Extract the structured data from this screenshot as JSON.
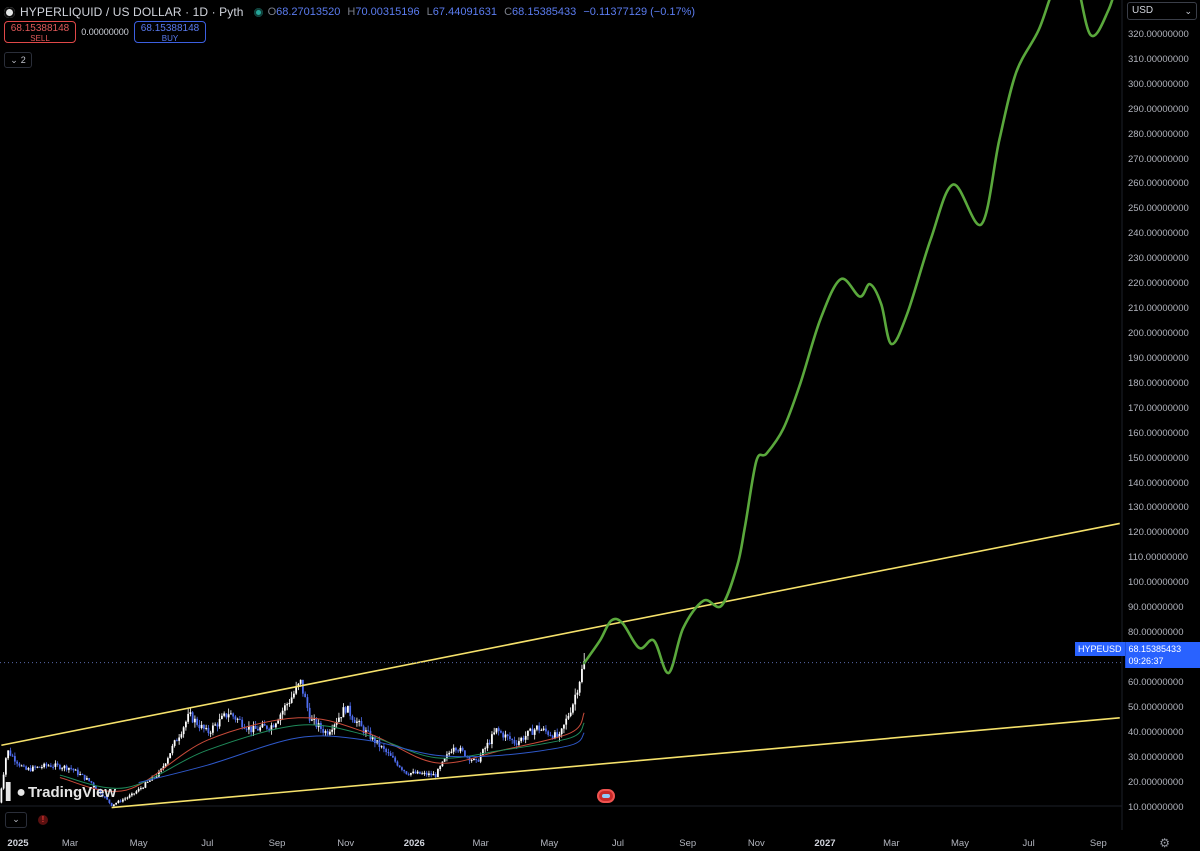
{
  "header": {
    "symbol_title": "HYPERLIQUID / US DOLLAR · 1D · Pyth",
    "open_label": "O",
    "open": "68.27013520",
    "high_label": "H",
    "high": "70.00315196",
    "low_label": "L",
    "low": "67.44091631",
    "close_label": "C",
    "close": "68.15385433",
    "change": "−0.11377129 (−0.17%)"
  },
  "trade": {
    "sell_price": "68.15388148",
    "sell_label": "SELL",
    "spread": "0.00000000",
    "buy_price": "68.15388148",
    "buy_label": "BUY"
  },
  "indicators_toggle": {
    "count": "2"
  },
  "currency": "USD",
  "last_price_tag": {
    "symbol": "HYPEUSD",
    "price": "68.15385433",
    "countdown": "09:26:37"
  },
  "logo_text": "TradingView",
  "colors": {
    "trendline": "#f5e16b",
    "projection": "#5aa83c",
    "accent": "#2962ff"
  },
  "price_axis_labels": [
    "320.00000000",
    "310.00000000",
    "300.00000000",
    "290.00000000",
    "280.00000000",
    "270.00000000",
    "260.00000000",
    "250.00000000",
    "240.00000000",
    "230.00000000",
    "220.00000000",
    "210.00000000",
    "200.00000000",
    "190.00000000",
    "180.00000000",
    "170.00000000",
    "160.00000000",
    "150.00000000",
    "140.00000000",
    "130.00000000",
    "120.00000000",
    "110.00000000",
    "100.00000000",
    "90.00000000",
    "80.00000000",
    "70.00000000",
    "60.00000000",
    "50.00000000",
    "40.00000000",
    "30.00000000",
    "20.00000000",
    "10.00000000"
  ],
  "time_axis_labels": [
    {
      "text": "2025",
      "bold": true
    },
    {
      "text": "Mar",
      "bold": false
    },
    {
      "text": "May",
      "bold": false
    },
    {
      "text": "Jul",
      "bold": false
    },
    {
      "text": "Sep",
      "bold": false
    },
    {
      "text": "Nov",
      "bold": false
    },
    {
      "text": "2026",
      "bold": true
    },
    {
      "text": "Mar",
      "bold": false
    },
    {
      "text": "May",
      "bold": false
    },
    {
      "text": "Jul",
      "bold": false
    },
    {
      "text": "Sep",
      "bold": false
    },
    {
      "text": "Nov",
      "bold": false
    },
    {
      "text": "2027",
      "bold": true
    },
    {
      "text": "Mar",
      "bold": false
    },
    {
      "text": "May",
      "bold": false
    },
    {
      "text": "Jul",
      "bold": false
    },
    {
      "text": "Sep",
      "bold": false
    }
  ],
  "chart_data": {
    "type": "line",
    "y_range": [
      5,
      330
    ],
    "x_range": [
      "2024-12-27",
      "2027-09-22"
    ],
    "current_price": 68.15,
    "trendlines": [
      {
        "name": "upper",
        "from": {
          "x": "2024-12-30",
          "y": 35
        },
        "to": {
          "x": "2027-09-20",
          "y": 124
        }
      },
      {
        "name": "lower",
        "from": {
          "x": "2025-04-07",
          "y": 10
        },
        "to": {
          "x": "2027-09-20",
          "y": 46
        }
      }
    ],
    "price_history": {
      "x": [
        "2024-12-28",
        "2025-01-04",
        "2025-01-20",
        "2025-02-10",
        "2025-03-01",
        "2025-03-20",
        "2025-04-07",
        "2025-04-25",
        "2025-05-20",
        "2025-06-01",
        "2025-06-15",
        "2025-07-01",
        "2025-07-20",
        "2025-08-10",
        "2025-08-28",
        "2025-09-15",
        "2025-09-22",
        "2025-10-01",
        "2025-10-15",
        "2025-11-01",
        "2025-11-15",
        "2025-12-05",
        "2025-12-25",
        "2026-01-20",
        "2026-02-05",
        "2026-02-25",
        "2026-03-15",
        "2026-04-01",
        "2026-04-20",
        "2026-05-10",
        "2026-05-22",
        "2026-06-01"
      ],
      "y": [
        12,
        33,
        25,
        27,
        26,
        20,
        11,
        15,
        24,
        35,
        47,
        40,
        48,
        41,
        43,
        55,
        60,
        45,
        40,
        50,
        42,
        33,
        24,
        23,
        35,
        28,
        41,
        36,
        42,
        38,
        52,
        68
      ]
    },
    "projection": {
      "x": [
        "2026-06-01",
        "2026-06-15",
        "2026-06-25",
        "2026-07-05",
        "2026-07-20",
        "2026-08-02",
        "2026-08-15",
        "2026-08-28",
        "2026-09-15",
        "2026-10-01",
        "2026-10-15",
        "2026-10-22",
        "2026-11-01",
        "2026-11-10",
        "2026-11-25",
        "2026-12-10",
        "2026-12-28",
        "2027-01-15",
        "2027-02-01",
        "2027-02-10",
        "2027-02-20",
        "2027-03-01",
        "2027-03-15",
        "2027-04-05",
        "2027-04-25",
        "2027-05-20",
        "2027-06-05",
        "2027-06-20",
        "2027-07-10",
        "2027-07-25",
        "2027-08-10",
        "2027-08-25",
        "2027-09-10",
        "2027-09-20"
      ],
      "y": [
        68,
        77,
        85,
        84,
        74,
        77,
        64,
        82,
        93,
        91,
        107,
        123,
        149,
        152,
        162,
        180,
        206,
        222,
        215,
        220,
        212,
        196,
        208,
        238,
        260,
        244,
        278,
        305,
        322,
        340,
        345,
        320,
        330,
        345
      ]
    },
    "moving_averages": [
      {
        "color": "#c94b3a",
        "x": [
          "2025-02-20",
          "2025-04-20",
          "2025-07-01",
          "2025-09-20",
          "2025-11-20",
          "2026-01-20",
          "2026-03-20",
          "2026-05-20",
          "2026-06-01"
        ],
        "y": [
          22,
          17,
          37,
          46,
          40,
          28,
          33,
          40,
          48
        ]
      },
      {
        "color": "#1f8a5a",
        "x": [
          "2025-02-20",
          "2025-04-20",
          "2025-07-01",
          "2025-09-20",
          "2025-11-20",
          "2026-01-20",
          "2026-03-20",
          "2026-05-20",
          "2026-06-01"
        ],
        "y": [
          23,
          18,
          33,
          43,
          39,
          30,
          33,
          38,
          44
        ]
      },
      {
        "color": "#2e58c9",
        "x": [
          "2025-05-01",
          "2025-07-01",
          "2025-09-20",
          "2025-11-20",
          "2026-01-20",
          "2026-03-20",
          "2026-05-20",
          "2026-06-01"
        ],
        "y": [
          20,
          27,
          38,
          37,
          31,
          31,
          35,
          40
        ]
      }
    ]
  }
}
